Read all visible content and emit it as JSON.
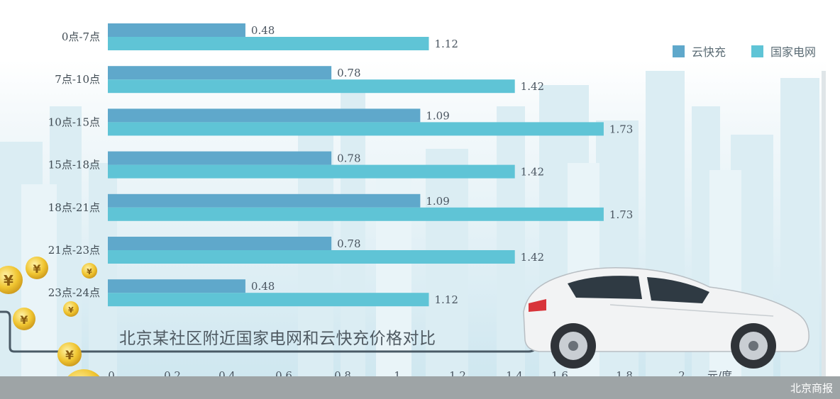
{
  "chart_data": {
    "type": "bar",
    "orientation": "horizontal",
    "title": "北京某社区附近国家电网和云快充价格对比",
    "xlabel": "元/度",
    "xlim": [
      0,
      2.1
    ],
    "x_ticks": [
      "0",
      "0.2",
      "0.4",
      "0.6",
      "0.8",
      "1",
      "1.2",
      "1.4",
      "1.6",
      "1.8",
      "2"
    ],
    "categories": [
      "0点-7点",
      "7点-10点",
      "10点-15点",
      "15点-18点",
      "18点-21点",
      "21点-23点",
      "23点-24点"
    ],
    "series": [
      {
        "name": "云快充",
        "color": "#5fa8cb",
        "values": [
          0.48,
          0.78,
          1.09,
          0.78,
          1.09,
          0.78,
          0.48
        ],
        "labels": [
          "0.48",
          "0.78",
          "1.09",
          "0.78",
          "1.09",
          "0.78",
          "0.48"
        ]
      },
      {
        "name": "国家电网",
        "color": "#5fc4d6",
        "values": [
          1.12,
          1.42,
          1.73,
          1.42,
          1.73,
          1.42,
          1.12
        ],
        "labels": [
          "1.12",
          "1.42",
          "1.73",
          "1.42",
          "1.73",
          "1.42",
          "1.12"
        ]
      }
    ],
    "legend_position": "top-right",
    "grid": false
  },
  "legend": {
    "items": [
      {
        "name": "云快充",
        "color": "#5fa8cb"
      },
      {
        "name": "国家电网",
        "color": "#5fc4d6"
      }
    ]
  },
  "watermark": "北京商报"
}
